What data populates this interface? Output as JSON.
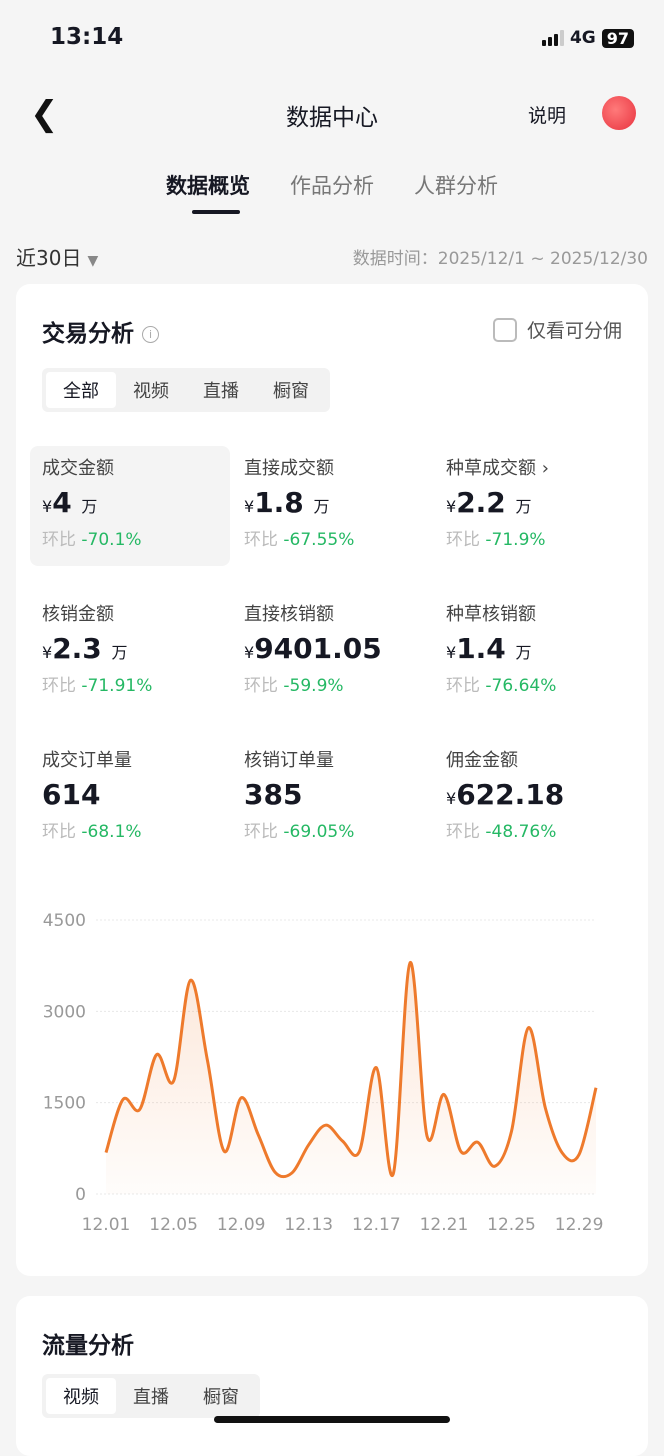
{
  "status": {
    "time": "13:14",
    "network": "4G",
    "battery": "97"
  },
  "nav": {
    "title": "数据中心",
    "explain": "说明"
  },
  "tabs": [
    "数据概览",
    "作品分析",
    "人群分析"
  ],
  "filter": {
    "range": "近30日",
    "data_time": "数据时间：2025/12/1 ~ 2025/12/30"
  },
  "trade": {
    "title": "交易分析",
    "only_commission": "仅看可分佣",
    "segments": [
      "全部",
      "视频",
      "直播",
      "橱窗"
    ],
    "metrics": [
      {
        "label": "成交金额",
        "prefix": "¥",
        "value": "4",
        "unit": "万",
        "cmp_label": "环比",
        "cmp": "-70.1%"
      },
      {
        "label": "直接成交额",
        "prefix": "¥",
        "value": "1.8",
        "unit": "万",
        "cmp_label": "环比",
        "cmp": "-67.55%"
      },
      {
        "label": "种草成交额 ›",
        "prefix": "¥",
        "value": "2.2",
        "unit": "万",
        "cmp_label": "环比",
        "cmp": "-71.9%"
      },
      {
        "label": "核销金额",
        "prefix": "¥",
        "value": "2.3",
        "unit": "万",
        "cmp_label": "环比",
        "cmp": "-71.91%"
      },
      {
        "label": "直接核销额",
        "prefix": "¥",
        "value": "9401.05",
        "unit": "",
        "cmp_label": "环比",
        "cmp": "-59.9%"
      },
      {
        "label": "种草核销额",
        "prefix": "¥",
        "value": "1.4",
        "unit": "万",
        "cmp_label": "环比",
        "cmp": "-76.64%"
      },
      {
        "label": "成交订单量",
        "prefix": "",
        "value": "614",
        "unit": "",
        "cmp_label": "环比",
        "cmp": "-68.1%"
      },
      {
        "label": "核销订单量",
        "prefix": "",
        "value": "385",
        "unit": "",
        "cmp_label": "环比",
        "cmp": "-69.05%"
      },
      {
        "label": "佣金金额",
        "prefix": "¥",
        "value": "622.18",
        "unit": "",
        "cmp_label": "环比",
        "cmp": "-48.76%"
      }
    ]
  },
  "chart_data": {
    "type": "area",
    "ylim": [
      0,
      4500
    ],
    "yticks": [
      "0",
      "1500",
      "3000",
      "4500"
    ],
    "grid": true,
    "x": [
      "12.01",
      "12.02",
      "12.03",
      "12.04",
      "12.05",
      "12.06",
      "12.07",
      "12.08",
      "12.09",
      "12.10",
      "12.11",
      "12.12",
      "12.13",
      "12.14",
      "12.15",
      "12.16",
      "12.17",
      "12.18",
      "12.19",
      "12.20",
      "12.21",
      "12.22",
      "12.23",
      "12.24",
      "12.25",
      "12.26",
      "12.27",
      "12.28",
      "12.29",
      "12.30"
    ],
    "xticks": [
      "12.01",
      "12.05",
      "12.09",
      "12.13",
      "12.17",
      "12.21",
      "12.25",
      "12.29"
    ],
    "values": [
      680,
      1550,
      1390,
      2290,
      1855,
      3510,
      2200,
      700,
      1580,
      980,
      360,
      345,
      810,
      1130,
      870,
      700,
      2075,
      330,
      3800,
      950,
      1635,
      700,
      850,
      455,
      1030,
      2730,
      1415,
      675,
      650,
      1745
    ],
    "color": "#ee7a2c"
  },
  "traffic": {
    "title": "流量分析",
    "segments": [
      "视频",
      "直播",
      "橱窗"
    ]
  }
}
